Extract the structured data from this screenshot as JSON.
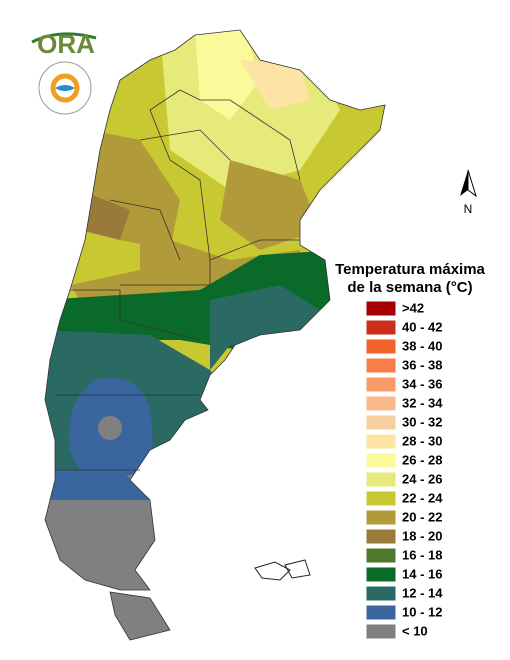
{
  "logo": {
    "text": "ORA"
  },
  "north_arrow": {
    "label": "N"
  },
  "legend": {
    "title": [
      "Temperatura máxima",
      "de la semana (°C)"
    ],
    "items": [
      {
        "label": ">42",
        "color": "#a50000"
      },
      {
        "label": "40 - 42",
        "color": "#cc2e1c"
      },
      {
        "label": "38 - 40",
        "color": "#f0622a"
      },
      {
        "label": "36 - 38",
        "color": "#f87e48"
      },
      {
        "label": "34 - 36",
        "color": "#f89a6a"
      },
      {
        "label": "32 - 34",
        "color": "#f8b88a"
      },
      {
        "label": "30 - 32",
        "color": "#f8cfa0"
      },
      {
        "label": "28 - 30",
        "color": "#fde3a4"
      },
      {
        "label": "26 - 28",
        "color": "#fafa9a"
      },
      {
        "label": "24 - 26",
        "color": "#e6ea7a"
      },
      {
        "label": "22 - 24",
        "color": "#c8c832"
      },
      {
        "label": "20 - 22",
        "color": "#b09a3a"
      },
      {
        "label": "18 - 20",
        "color": "#9a7a3a"
      },
      {
        "label": "16 - 18",
        "color": "#4f7a2e"
      },
      {
        "label": "14 - 16",
        "color": "#0a6a2a"
      },
      {
        "label": "12 - 14",
        "color": "#2a6a62"
      },
      {
        "label": "10 - 12",
        "color": "#3a66a0"
      },
      {
        "label": "< 10",
        "color": "#808080"
      }
    ]
  }
}
